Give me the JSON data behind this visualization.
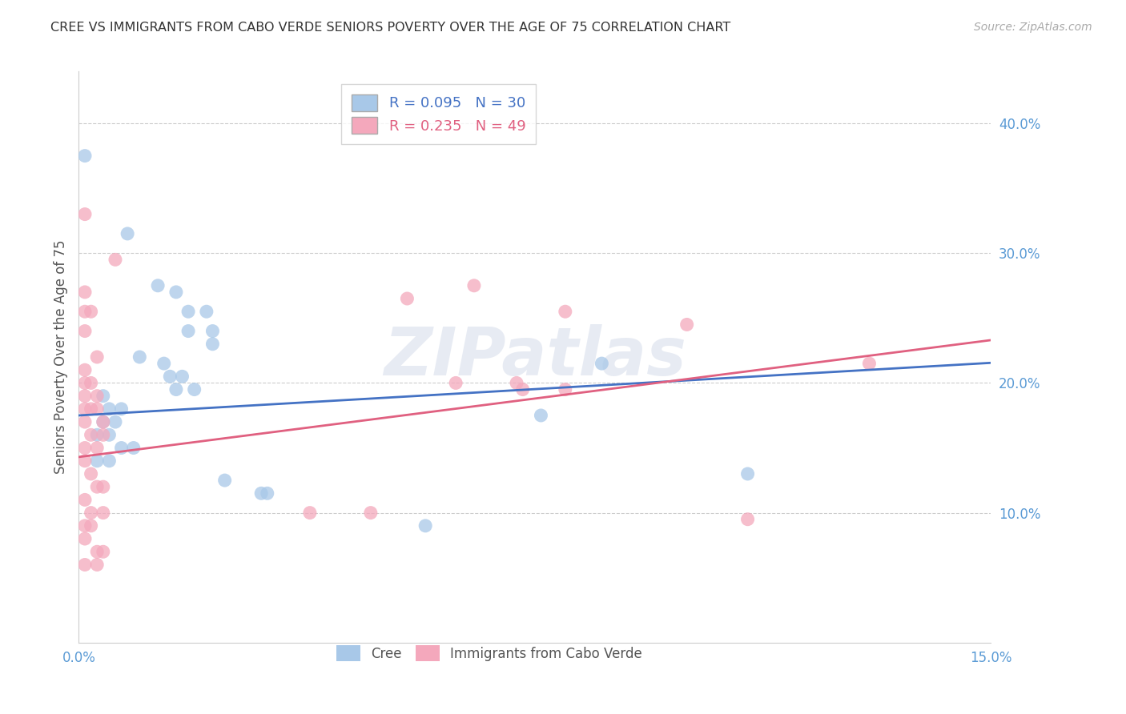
{
  "title": "CREE VS IMMIGRANTS FROM CABO VERDE SENIORS POVERTY OVER THE AGE OF 75 CORRELATION CHART",
  "source_text": "Source: ZipAtlas.com",
  "ylabel": "Seniors Poverty Over the Age of 75",
  "xlim": [
    0.0,
    0.15
  ],
  "ylim": [
    0.0,
    0.44
  ],
  "yticks": [
    0.1,
    0.2,
    0.3,
    0.4
  ],
  "ytick_labels": [
    "10.0%",
    "20.0%",
    "30.0%",
    "40.0%"
  ],
  "xticks": [
    0.0,
    0.15
  ],
  "xtick_labels": [
    "0.0%",
    "15.0%"
  ],
  "watermark": "ZIPatlas",
  "cree_color": "#a8c8e8",
  "cabo_color": "#f4a8bc",
  "cree_line_color": "#4472c4",
  "cabo_line_color": "#e06080",
  "axis_color": "#5b9bd5",
  "grid_color": "#cccccc",
  "background_color": "#ffffff",
  "cree_points": [
    [
      0.001,
      0.375
    ],
    [
      0.008,
      0.315
    ],
    [
      0.013,
      0.275
    ],
    [
      0.016,
      0.27
    ],
    [
      0.018,
      0.255
    ],
    [
      0.021,
      0.255
    ],
    [
      0.018,
      0.24
    ],
    [
      0.022,
      0.24
    ],
    [
      0.022,
      0.23
    ],
    [
      0.01,
      0.22
    ],
    [
      0.014,
      0.215
    ],
    [
      0.015,
      0.205
    ],
    [
      0.017,
      0.205
    ],
    [
      0.016,
      0.195
    ],
    [
      0.019,
      0.195
    ],
    [
      0.004,
      0.19
    ],
    [
      0.005,
      0.18
    ],
    [
      0.007,
      0.18
    ],
    [
      0.004,
      0.17
    ],
    [
      0.006,
      0.17
    ],
    [
      0.003,
      0.16
    ],
    [
      0.005,
      0.16
    ],
    [
      0.007,
      0.15
    ],
    [
      0.009,
      0.15
    ],
    [
      0.003,
      0.14
    ],
    [
      0.005,
      0.14
    ],
    [
      0.024,
      0.125
    ],
    [
      0.03,
      0.115
    ],
    [
      0.031,
      0.115
    ],
    [
      0.057,
      0.09
    ],
    [
      0.076,
      0.175
    ],
    [
      0.086,
      0.215
    ],
    [
      0.11,
      0.13
    ]
  ],
  "cabo_points": [
    [
      0.001,
      0.33
    ],
    [
      0.006,
      0.295
    ],
    [
      0.001,
      0.27
    ],
    [
      0.001,
      0.255
    ],
    [
      0.002,
      0.255
    ],
    [
      0.001,
      0.24
    ],
    [
      0.003,
      0.22
    ],
    [
      0.001,
      0.21
    ],
    [
      0.001,
      0.2
    ],
    [
      0.002,
      0.2
    ],
    [
      0.001,
      0.19
    ],
    [
      0.003,
      0.19
    ],
    [
      0.001,
      0.18
    ],
    [
      0.002,
      0.18
    ],
    [
      0.003,
      0.18
    ],
    [
      0.001,
      0.17
    ],
    [
      0.004,
      0.17
    ],
    [
      0.002,
      0.16
    ],
    [
      0.004,
      0.16
    ],
    [
      0.001,
      0.15
    ],
    [
      0.003,
      0.15
    ],
    [
      0.001,
      0.14
    ],
    [
      0.002,
      0.13
    ],
    [
      0.003,
      0.12
    ],
    [
      0.004,
      0.12
    ],
    [
      0.001,
      0.11
    ],
    [
      0.002,
      0.1
    ],
    [
      0.004,
      0.1
    ],
    [
      0.001,
      0.09
    ],
    [
      0.002,
      0.09
    ],
    [
      0.001,
      0.08
    ],
    [
      0.003,
      0.07
    ],
    [
      0.004,
      0.07
    ],
    [
      0.001,
      0.06
    ],
    [
      0.003,
      0.06
    ],
    [
      0.038,
      0.1
    ],
    [
      0.048,
      0.1
    ],
    [
      0.054,
      0.265
    ],
    [
      0.062,
      0.2
    ],
    [
      0.065,
      0.275
    ],
    [
      0.072,
      0.2
    ],
    [
      0.073,
      0.195
    ],
    [
      0.08,
      0.255
    ],
    [
      0.08,
      0.195
    ],
    [
      0.1,
      0.245
    ],
    [
      0.11,
      0.095
    ],
    [
      0.13,
      0.215
    ]
  ],
  "cree_line_intercept": 0.175,
  "cree_line_slope": 0.27,
  "cabo_line_intercept": 0.143,
  "cabo_line_slope": 0.6
}
